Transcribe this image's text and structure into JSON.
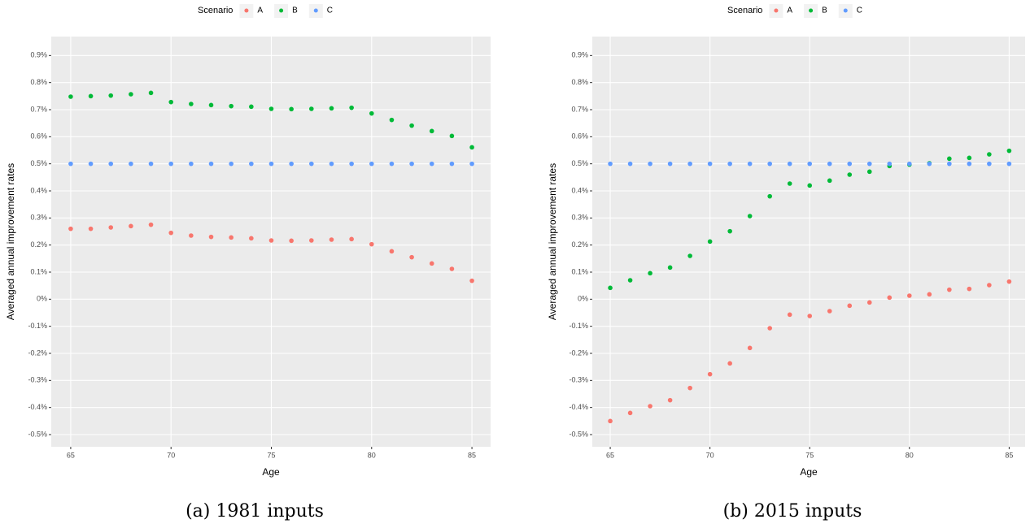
{
  "chart_data": [
    {
      "type": "scatter",
      "caption": "(a) 1981 inputs",
      "x_label": "Age",
      "y_label": "Averaged annual improvement rates",
      "legend_title": "Scenario",
      "legend_position": "top",
      "grid": true,
      "x": [
        65,
        66,
        67,
        68,
        69,
        70,
        71,
        72,
        73,
        74,
        75,
        76,
        77,
        78,
        79,
        80,
        81,
        82,
        83,
        84,
        85
      ],
      "series": [
        {
          "name": "A",
          "color": "#F8766D",
          "values": [
            0.26,
            0.26,
            0.265,
            0.27,
            0.275,
            0.245,
            0.235,
            0.23,
            0.228,
            0.225,
            0.217,
            0.216,
            0.217,
            0.22,
            0.222,
            0.203,
            0.177,
            0.155,
            0.132,
            0.112,
            0.068
          ]
        },
        {
          "name": "B",
          "color": "#00BA38",
          "values": [
            0.748,
            0.75,
            0.752,
            0.757,
            0.762,
            0.728,
            0.721,
            0.717,
            0.713,
            0.711,
            0.703,
            0.702,
            0.703,
            0.705,
            0.707,
            0.686,
            0.662,
            0.641,
            0.621,
            0.603,
            0.561
          ]
        },
        {
          "name": "C",
          "color": "#619CFF",
          "values": [
            0.5,
            0.5,
            0.5,
            0.5,
            0.5,
            0.5,
            0.5,
            0.5,
            0.5,
            0.5,
            0.5,
            0.5,
            0.5,
            0.5,
            0.5,
            0.5,
            0.5,
            0.5,
            0.5,
            0.5,
            0.5
          ]
        }
      ],
      "xlim": [
        64.03,
        85.93
      ],
      "xticks": [
        65,
        70,
        75,
        80,
        85
      ],
      "ylim": [
        -0.545,
        0.97
      ],
      "yticks": [
        {
          "value": -0.5,
          "label": "-0.5%"
        },
        {
          "value": -0.4,
          "label": "-0.4%"
        },
        {
          "value": -0.3,
          "label": "-0.3%"
        },
        {
          "value": -0.2,
          "label": "-0.2%"
        },
        {
          "value": -0.1,
          "label": "-0.1%"
        },
        {
          "value": 0,
          "label": "0%"
        },
        {
          "value": 0.1,
          "label": "0.1%"
        },
        {
          "value": 0.2,
          "label": "0.2%"
        },
        {
          "value": 0.3,
          "label": "0.3%"
        },
        {
          "value": 0.4,
          "label": "0.4%"
        },
        {
          "value": 0.5,
          "label": "0.5%"
        },
        {
          "value": 0.6,
          "label": "0.6%"
        },
        {
          "value": 0.7,
          "label": "0.7%"
        },
        {
          "value": 0.8,
          "label": "0.8%"
        },
        {
          "value": 0.9,
          "label": "0.9%"
        }
      ]
    },
    {
      "type": "scatter",
      "caption": "(b) 2015 inputs",
      "x_label": "Age",
      "y_label": "Averaged annual improvement rates",
      "legend_title": "Scenario",
      "legend_position": "top",
      "grid": true,
      "x": [
        65,
        66,
        67,
        68,
        69,
        70,
        71,
        72,
        73,
        74,
        75,
        76,
        77,
        78,
        79,
        80,
        81,
        82,
        83,
        84,
        85
      ],
      "series": [
        {
          "name": "A",
          "color": "#F8766D",
          "values": [
            -0.45,
            -0.42,
            -0.395,
            -0.373,
            -0.328,
            -0.277,
            -0.237,
            -0.18,
            -0.107,
            -0.057,
            -0.062,
            -0.044,
            -0.024,
            -0.012,
            0.006,
            0.013,
            0.018,
            0.035,
            0.038,
            0.052,
            0.065
          ]
        },
        {
          "name": "B",
          "color": "#00BA38",
          "values": [
            0.042,
            0.07,
            0.096,
            0.117,
            0.16,
            0.213,
            0.251,
            0.307,
            0.38,
            0.427,
            0.42,
            0.438,
            0.46,
            0.471,
            0.492,
            0.497,
            0.502,
            0.519,
            0.522,
            0.535,
            0.548
          ]
        },
        {
          "name": "C",
          "color": "#619CFF",
          "values": [
            0.5,
            0.5,
            0.5,
            0.5,
            0.5,
            0.5,
            0.5,
            0.5,
            0.5,
            0.5,
            0.5,
            0.5,
            0.5,
            0.5,
            0.5,
            0.5,
            0.5,
            0.5,
            0.5,
            0.5,
            0.5
          ]
        }
      ],
      "xlim": [
        64.1,
        85.8
      ],
      "xticks": [
        65,
        70,
        75,
        80,
        85
      ],
      "ylim": [
        -0.545,
        0.97
      ],
      "yticks": [
        {
          "value": -0.5,
          "label": "-0.5%"
        },
        {
          "value": -0.4,
          "label": "-0.4%"
        },
        {
          "value": -0.3,
          "label": "-0.3%"
        },
        {
          "value": -0.2,
          "label": "-0.2%"
        },
        {
          "value": -0.1,
          "label": "-0.1%"
        },
        {
          "value": 0,
          "label": "0%"
        },
        {
          "value": 0.1,
          "label": "0.1%"
        },
        {
          "value": 0.2,
          "label": "0.2%"
        },
        {
          "value": 0.3,
          "label": "0.3%"
        },
        {
          "value": 0.4,
          "label": "0.4%"
        },
        {
          "value": 0.5,
          "label": "0.5%"
        },
        {
          "value": 0.6,
          "label": "0.6%"
        },
        {
          "value": 0.7,
          "label": "0.7%"
        },
        {
          "value": 0.8,
          "label": "0.8%"
        },
        {
          "value": 0.9,
          "label": "0.9%"
        }
      ]
    }
  ]
}
